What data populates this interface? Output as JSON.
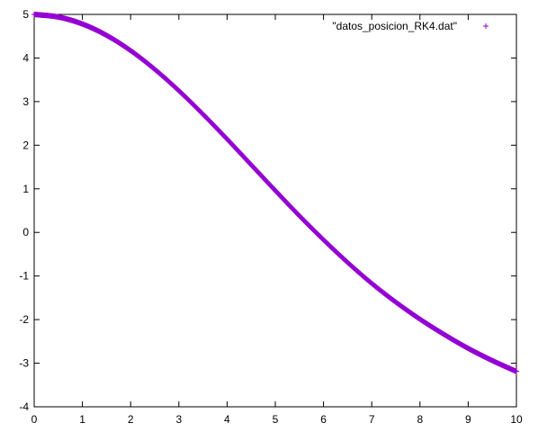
{
  "chart_data": {
    "type": "scatter",
    "title": "",
    "xlabel": "",
    "ylabel": "",
    "xlim": [
      0,
      10
    ],
    "ylim": [
      -4,
      5
    ],
    "x_ticks": [
      "0",
      "1",
      "2",
      "3",
      "4",
      "5",
      "6",
      "7",
      "8",
      "9",
      "10"
    ],
    "y_ticks": [
      "5",
      "4",
      "3",
      "2",
      "1",
      "0",
      "-1",
      "-2",
      "-3",
      "-4"
    ],
    "grid": false,
    "legend_position": "top-right",
    "series": [
      {
        "name": "\"datos_posicion_RK4.dat\"",
        "marker": "plus",
        "color": "#9400d3",
        "x": [
          0,
          0.5,
          1,
          1.5,
          2,
          2.5,
          3,
          3.5,
          4,
          4.5,
          5,
          5.5,
          6,
          6.5,
          7,
          7.5,
          8,
          8.5,
          9,
          9.5,
          10
        ],
        "y": [
          5.0,
          4.94,
          4.78,
          4.52,
          4.17,
          3.74,
          3.25,
          2.71,
          2.14,
          1.55,
          0.96,
          0.38,
          -0.17,
          -0.69,
          -1.17,
          -1.6,
          -1.99,
          -2.34,
          -2.66,
          -2.94,
          -3.19
        ]
      }
    ]
  }
}
